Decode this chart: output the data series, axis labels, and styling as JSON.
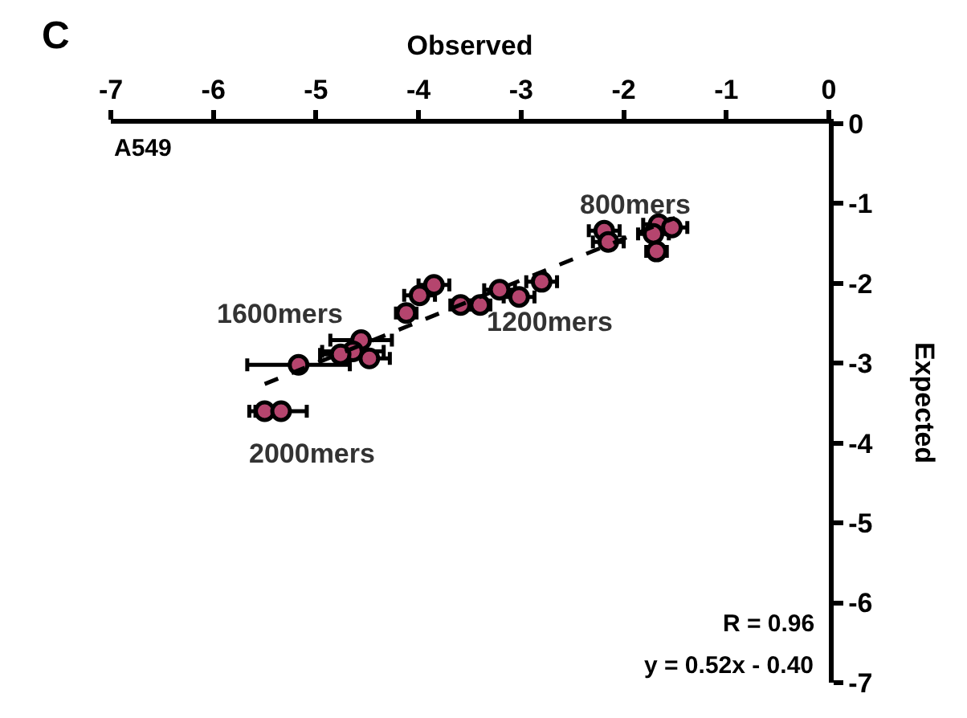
{
  "chart_data": {
    "type": "scatter",
    "title": "C",
    "xlabel": "Observed",
    "ylabel": "Expected",
    "xlim": [
      -7,
      0
    ],
    "xticks": [
      -7,
      -6,
      -5,
      -4,
      -3,
      -2,
      -1,
      0
    ],
    "ylim": [
      -7,
      0
    ],
    "yticks": [
      0,
      -1,
      -2,
      -3,
      -4,
      -5,
      -6,
      -7
    ],
    "series": [
      {
        "marker": "circle",
        "color": "#b5456e",
        "x": [
          -2.19,
          -2.15,
          -1.66,
          -1.53,
          -1.71,
          -1.68,
          -2.8,
          -3.21,
          -3.02,
          -3.4,
          -3.59,
          -3.85,
          -3.99,
          -4.12,
          -4.56,
          -4.64,
          -4.76,
          -4.48,
          -5.17,
          -5.5,
          -5.34
        ],
        "values": [
          -1.34,
          -1.48,
          -1.26,
          -1.3,
          -1.38,
          -1.6,
          -1.98,
          -2.08,
          -2.17,
          -2.27,
          -2.27,
          -2.02,
          -2.15,
          -2.37,
          -2.71,
          -2.85,
          -2.89,
          -2.94,
          -3.02,
          -3.6,
          -3.6
        ],
        "xerrors": [
          0.15,
          0.15,
          0.15,
          0.15,
          0.15,
          0.1,
          0.15,
          0.15,
          0.15,
          0.1,
          0.1,
          0.15,
          0.15,
          0.1,
          0.3,
          0.3,
          0.2,
          0.2,
          0.5,
          0.15,
          0.25
        ]
      },
      {
        "type": "line",
        "color": "#000000",
        "line_style": "dashed",
        "x": [
          -5.5,
          -1.5
        ],
        "values": [
          -3.26,
          -1.18
        ]
      }
    ],
    "annotations": [
      "A549",
      "800mers",
      "1600mers",
      "1200mers",
      "2000mers",
      "R = 0.96",
      "y = 0.52x - 0.40"
    ]
  }
}
